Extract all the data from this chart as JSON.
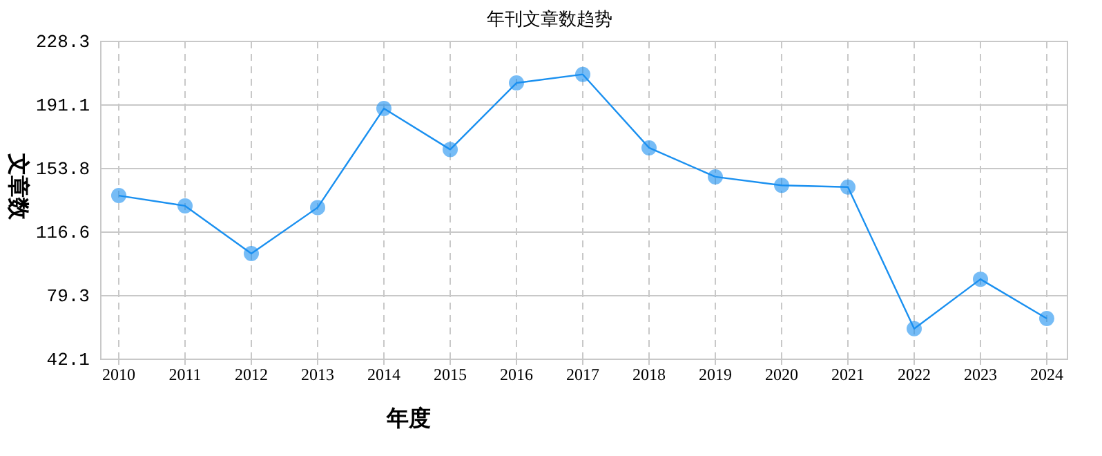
{
  "chart_data": {
    "type": "line",
    "title": "年刊文章数趋势",
    "xlabel": "年度",
    "ylabel": "文章数",
    "categories": [
      "2010",
      "2011",
      "2012",
      "2013",
      "2014",
      "2015",
      "2016",
      "2017",
      "2018",
      "2019",
      "2020",
      "2021",
      "2022",
      "2023",
      "2024"
    ],
    "series": [
      {
        "color": "#1a90f0",
        "values": [
          138,
          132,
          104,
          131,
          189,
          165,
          204,
          209,
          166,
          149,
          144,
          143,
          60,
          89,
          66
        ]
      }
    ],
    "ylim": [
      42.1,
      228.3
    ],
    "yticks": [
      42.1,
      79.3,
      116.6,
      153.8,
      191.1,
      228.3
    ],
    "grid": true,
    "marker": "circle",
    "line_style": "solid"
  }
}
